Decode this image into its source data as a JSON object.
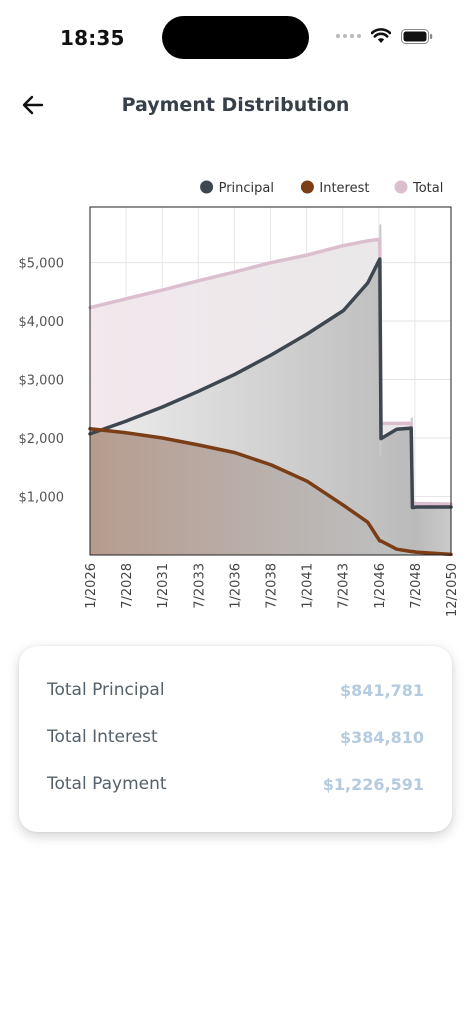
{
  "status_bar": {
    "time": "18:35"
  },
  "header": {
    "title": "Payment Distribution",
    "back_icon": "arrow-left-icon"
  },
  "colors": {
    "principal": "#3e4650",
    "interest": "#7a3d16",
    "total": "#dbbfcf",
    "summary_value": "#b4cbe0"
  },
  "chart_data": {
    "type": "area",
    "legend": [
      {
        "name": "Principal",
        "color": "#3e4650"
      },
      {
        "name": "Interest",
        "color": "#7a3d16"
      },
      {
        "name": "Total",
        "color": "#dbbfcf"
      }
    ],
    "legend_placement": "top-right",
    "xlabel": "",
    "ylabel": "",
    "x_ticks": [
      "1/2026",
      "7/2028",
      "1/2031",
      "7/2033",
      "1/2036",
      "7/2038",
      "1/2041",
      "7/2043",
      "1/2046",
      "7/2048",
      "12/2050"
    ],
    "y_ticks": [
      "$1,000",
      "$2,000",
      "$3,000",
      "$4,000",
      "$5,000"
    ],
    "ylim": [
      0,
      5950
    ],
    "grid": true,
    "x_unit": "months since 1/2026 (0 = 1/2026, 299 = 12/2050)",
    "series": [
      {
        "name": "Principal",
        "x": [
          0,
          30,
          60,
          90,
          120,
          150,
          180,
          210,
          230,
          240,
          241,
          254,
          266,
          267,
          270,
          299
        ],
        "values": [
          2070,
          2290,
          2530,
          2800,
          3090,
          3420,
          3780,
          4180,
          4650,
          5060,
          1990,
          2150,
          2170,
          810,
          820,
          820
        ]
      },
      {
        "name": "Interest",
        "x": [
          0,
          30,
          60,
          90,
          120,
          150,
          180,
          210,
          230,
          240,
          241,
          254,
          266,
          267,
          270,
          299
        ],
        "values": [
          2160,
          2090,
          2000,
          1880,
          1750,
          1540,
          1260,
          850,
          560,
          240,
          240,
          100,
          60,
          60,
          50,
          10
        ]
      },
      {
        "name": "Total",
        "x": [
          0,
          30,
          60,
          90,
          120,
          150,
          180,
          210,
          230,
          240,
          241,
          254,
          266,
          267,
          270,
          299
        ],
        "values": [
          4230,
          4380,
          4530,
          4690,
          4840,
          5000,
          5130,
          5290,
          5370,
          5400,
          2250,
          2250,
          2250,
          900,
          880,
          870
        ]
      }
    ]
  },
  "summary": {
    "rows": [
      {
        "label": "Total Principal",
        "value": "$841,781"
      },
      {
        "label": "Total Interest",
        "value": "$384,810"
      },
      {
        "label": "Total Payment",
        "value": "$1,226,591"
      }
    ]
  }
}
